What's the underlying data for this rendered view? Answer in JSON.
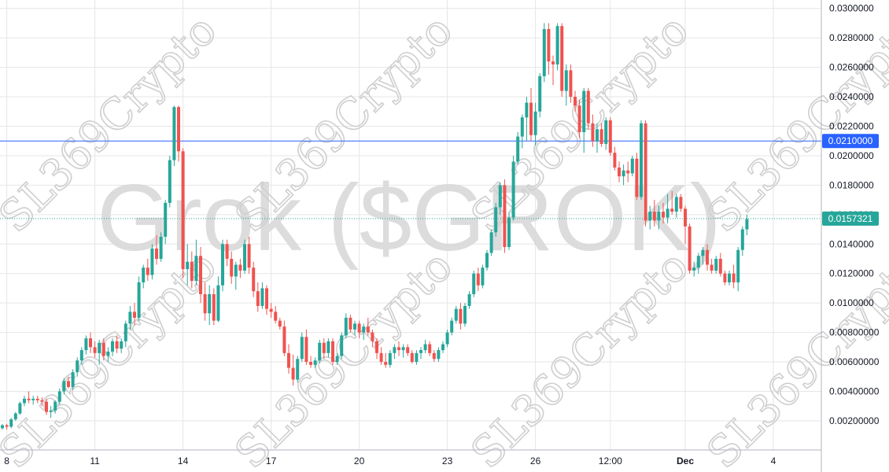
{
  "watermark": {
    "title": "Grok ($GROK)",
    "brand": "SL369Crypto"
  },
  "colors": {
    "up": "#26a69a",
    "down": "#ef5350",
    "grid": "#e6e6e6",
    "hline": "#2962ff",
    "last_line": "#26a69a"
  },
  "chart_data": {
    "type": "candlestick",
    "ylim": [
      0,
      0.0305
    ],
    "yticks": [
      "0.00200000",
      "0.00400000",
      "0.00600000",
      "0.00800000",
      "0.0100000",
      "0.0120000",
      "0.0140000",
      "0.0160000",
      "0.0180000",
      "0.0200000",
      "0.0220000",
      "0.0240000",
      "0.0260000",
      "0.0280000",
      "0.0300000"
    ],
    "xticks": [
      {
        "label": "8",
        "bar": 1,
        "bold": false
      },
      {
        "label": "11",
        "bar": 21,
        "bold": false
      },
      {
        "label": "14",
        "bar": 41,
        "bold": false
      },
      {
        "label": "17",
        "bar": 61,
        "bold": false
      },
      {
        "label": "20",
        "bar": 81,
        "bold": false
      },
      {
        "label": "23",
        "bar": 101,
        "bold": false
      },
      {
        "label": "26",
        "bar": 121,
        "bold": false
      },
      {
        "label": "12:00",
        "bar": 138,
        "bold": false
      },
      {
        "label": "Dec",
        "bar": 155,
        "bold": true
      },
      {
        "label": "4",
        "bar": 175,
        "bold": false
      }
    ],
    "horizontal_line": {
      "value": 0.021,
      "label": "0.0210000"
    },
    "last_price": {
      "value": 0.0157321,
      "label": "0.0157321"
    },
    "ohlc": [
      [
        0.0015,
        0.0018,
        0.0014,
        0.0017
      ],
      [
        0.0017,
        0.0018,
        0.0014,
        0.0016
      ],
      [
        0.0016,
        0.0022,
        0.0015,
        0.0021
      ],
      [
        0.0021,
        0.0026,
        0.002,
        0.0025
      ],
      [
        0.0025,
        0.0033,
        0.0024,
        0.0032
      ],
      [
        0.0032,
        0.0037,
        0.003,
        0.0035
      ],
      [
        0.0035,
        0.004,
        0.0032,
        0.0034
      ],
      [
        0.0034,
        0.0037,
        0.0031,
        0.0035
      ],
      [
        0.0035,
        0.0037,
        0.0032,
        0.0034
      ],
      [
        0.0034,
        0.0036,
        0.003,
        0.0033
      ],
      [
        0.0033,
        0.0035,
        0.0024,
        0.0026
      ],
      [
        0.0026,
        0.003,
        0.0022,
        0.0027
      ],
      [
        0.0027,
        0.0034,
        0.0025,
        0.0033
      ],
      [
        0.0033,
        0.0042,
        0.0031,
        0.004
      ],
      [
        0.004,
        0.0049,
        0.0038,
        0.0047
      ],
      [
        0.0047,
        0.005,
        0.0042,
        0.0043
      ],
      [
        0.0043,
        0.0055,
        0.0041,
        0.0053
      ],
      [
        0.0053,
        0.0063,
        0.005,
        0.0061
      ],
      [
        0.0061,
        0.007,
        0.0058,
        0.0068
      ],
      [
        0.0068,
        0.0078,
        0.0065,
        0.0076
      ],
      [
        0.0076,
        0.008,
        0.0066,
        0.007
      ],
      [
        0.007,
        0.0074,
        0.0063,
        0.0066
      ],
      [
        0.0066,
        0.0075,
        0.0058,
        0.0073
      ],
      [
        0.0073,
        0.0076,
        0.0061,
        0.0064
      ],
      [
        0.0064,
        0.007,
        0.006,
        0.0067
      ],
      [
        0.0067,
        0.0076,
        0.0064,
        0.0074
      ],
      [
        0.0074,
        0.0078,
        0.0066,
        0.0069
      ],
      [
        0.0069,
        0.0076,
        0.0066,
        0.0074
      ],
      [
        0.0074,
        0.0088,
        0.007,
        0.0086
      ],
      [
        0.0086,
        0.0098,
        0.0082,
        0.0094
      ],
      [
        0.0094,
        0.01,
        0.0085,
        0.009
      ],
      [
        0.009,
        0.0118,
        0.0088,
        0.0114
      ],
      [
        0.0114,
        0.0126,
        0.011,
        0.0124
      ],
      [
        0.0124,
        0.013,
        0.0115,
        0.0119
      ],
      [
        0.0119,
        0.014,
        0.0116,
        0.0137
      ],
      [
        0.0137,
        0.0146,
        0.0126,
        0.013
      ],
      [
        0.013,
        0.0148,
        0.0128,
        0.0145
      ],
      [
        0.0145,
        0.017,
        0.014,
        0.0168
      ],
      [
        0.0168,
        0.02,
        0.0165,
        0.0197
      ],
      [
        0.0197,
        0.0234,
        0.0193,
        0.0233
      ],
      [
        0.0233,
        0.0234,
        0.0196,
        0.0203
      ],
      [
        0.0203,
        0.0205,
        0.0117,
        0.0123
      ],
      [
        0.0123,
        0.014,
        0.0112,
        0.0128
      ],
      [
        0.0128,
        0.0135,
        0.011,
        0.0115
      ],
      [
        0.0115,
        0.0143,
        0.0112,
        0.0132
      ],
      [
        0.0132,
        0.0138,
        0.01,
        0.0106
      ],
      [
        0.0106,
        0.0114,
        0.0088,
        0.0093
      ],
      [
        0.0093,
        0.0112,
        0.0085,
        0.0106
      ],
      [
        0.0106,
        0.011,
        0.0085,
        0.0088
      ],
      [
        0.0088,
        0.0118,
        0.0087,
        0.0112
      ],
      [
        0.0112,
        0.0143,
        0.0108,
        0.014
      ],
      [
        0.014,
        0.0143,
        0.0125,
        0.013
      ],
      [
        0.013,
        0.0135,
        0.0113,
        0.0118
      ],
      [
        0.0118,
        0.0128,
        0.0109,
        0.0126
      ],
      [
        0.0126,
        0.013,
        0.0117,
        0.0122
      ],
      [
        0.0122,
        0.0143,
        0.012,
        0.014
      ],
      [
        0.014,
        0.0145,
        0.012,
        0.0124
      ],
      [
        0.0124,
        0.0128,
        0.0104,
        0.0108
      ],
      [
        0.0108,
        0.0114,
        0.0094,
        0.0098
      ],
      [
        0.0098,
        0.0114,
        0.0096,
        0.011
      ],
      [
        0.011,
        0.0112,
        0.0092,
        0.0096
      ],
      [
        0.0096,
        0.01,
        0.009,
        0.0094
      ],
      [
        0.0094,
        0.0098,
        0.0086,
        0.0088
      ],
      [
        0.0088,
        0.009,
        0.0082,
        0.0084
      ],
      [
        0.0084,
        0.0088,
        0.0064,
        0.0066
      ],
      [
        0.0066,
        0.0072,
        0.0052,
        0.0056
      ],
      [
        0.0056,
        0.0065,
        0.0044,
        0.0048
      ],
      [
        0.0048,
        0.0064,
        0.0046,
        0.0062
      ],
      [
        0.0062,
        0.008,
        0.006,
        0.0077
      ],
      [
        0.0077,
        0.0082,
        0.0058,
        0.006
      ],
      [
        0.006,
        0.0064,
        0.0056,
        0.0058
      ],
      [
        0.0058,
        0.0063,
        0.0056,
        0.0061
      ],
      [
        0.0061,
        0.0075,
        0.0059,
        0.0073
      ],
      [
        0.0073,
        0.0076,
        0.0062,
        0.0066
      ],
      [
        0.0066,
        0.0076,
        0.0063,
        0.0074
      ],
      [
        0.0074,
        0.0076,
        0.0058,
        0.006
      ],
      [
        0.006,
        0.0066,
        0.0058,
        0.0064
      ],
      [
        0.0064,
        0.008,
        0.0062,
        0.0078
      ],
      [
        0.0078,
        0.0093,
        0.0076,
        0.009
      ],
      [
        0.009,
        0.0092,
        0.008,
        0.0082
      ],
      [
        0.0082,
        0.0088,
        0.0078,
        0.0086
      ],
      [
        0.0086,
        0.0088,
        0.0076,
        0.008
      ],
      [
        0.008,
        0.0086,
        0.0075,
        0.0084
      ],
      [
        0.0084,
        0.009,
        0.0078,
        0.008
      ],
      [
        0.008,
        0.0082,
        0.007,
        0.0074
      ],
      [
        0.0074,
        0.0076,
        0.0062,
        0.0066
      ],
      [
        0.0066,
        0.007,
        0.0058,
        0.006
      ],
      [
        0.006,
        0.0066,
        0.0056,
        0.0058
      ],
      [
        0.0058,
        0.0068,
        0.0056,
        0.0066
      ],
      [
        0.0066,
        0.0072,
        0.0062,
        0.007
      ],
      [
        0.007,
        0.0074,
        0.0064,
        0.0068
      ],
      [
        0.0068,
        0.0072,
        0.0063,
        0.007
      ],
      [
        0.007,
        0.0072,
        0.0064,
        0.0066
      ],
      [
        0.0066,
        0.0068,
        0.0059,
        0.006
      ],
      [
        0.006,
        0.0068,
        0.0058,
        0.0066
      ],
      [
        0.0066,
        0.007,
        0.0062,
        0.0068
      ],
      [
        0.0068,
        0.0075,
        0.0066,
        0.0072
      ],
      [
        0.0072,
        0.0074,
        0.0064,
        0.0066
      ],
      [
        0.0066,
        0.0068,
        0.006,
        0.0062
      ],
      [
        0.0062,
        0.007,
        0.006,
        0.0068
      ],
      [
        0.0068,
        0.0074,
        0.0066,
        0.0072
      ],
      [
        0.0072,
        0.0082,
        0.007,
        0.008
      ],
      [
        0.008,
        0.009,
        0.0078,
        0.0088
      ],
      [
        0.0088,
        0.0098,
        0.0086,
        0.0096
      ],
      [
        0.0096,
        0.01,
        0.0082,
        0.0086
      ],
      [
        0.0086,
        0.01,
        0.0084,
        0.0098
      ],
      [
        0.0098,
        0.0108,
        0.0096,
        0.0106
      ],
      [
        0.0106,
        0.0122,
        0.0104,
        0.012
      ],
      [
        0.012,
        0.0124,
        0.0108,
        0.0112
      ],
      [
        0.0112,
        0.0126,
        0.011,
        0.0124
      ],
      [
        0.0124,
        0.0136,
        0.0122,
        0.0134
      ],
      [
        0.0134,
        0.015,
        0.0132,
        0.0148
      ],
      [
        0.0148,
        0.0168,
        0.0145,
        0.0165
      ],
      [
        0.0165,
        0.0182,
        0.016,
        0.018
      ],
      [
        0.018,
        0.0184,
        0.0134,
        0.0138
      ],
      [
        0.0138,
        0.0162,
        0.0136,
        0.0158
      ],
      [
        0.0158,
        0.02,
        0.0156,
        0.0196
      ],
      [
        0.0196,
        0.0216,
        0.0194,
        0.0213
      ],
      [
        0.0213,
        0.0228,
        0.0205,
        0.0226
      ],
      [
        0.0226,
        0.024,
        0.021,
        0.0236
      ],
      [
        0.0236,
        0.0246,
        0.021,
        0.0214
      ],
      [
        0.0214,
        0.0236,
        0.0207,
        0.023
      ],
      [
        0.023,
        0.0256,
        0.0226,
        0.0254
      ],
      [
        0.0254,
        0.029,
        0.025,
        0.0286
      ],
      [
        0.0286,
        0.029,
        0.0255,
        0.0264
      ],
      [
        0.0264,
        0.0268,
        0.0248,
        0.0262
      ],
      [
        0.0262,
        0.029,
        0.0258,
        0.0288
      ],
      [
        0.0288,
        0.029,
        0.024,
        0.0244
      ],
      [
        0.0244,
        0.0262,
        0.0234,
        0.0258
      ],
      [
        0.0258,
        0.0262,
        0.0236,
        0.024
      ],
      [
        0.024,
        0.0244,
        0.023,
        0.0234
      ],
      [
        0.0234,
        0.0238,
        0.0212,
        0.0216
      ],
      [
        0.0216,
        0.0246,
        0.0202,
        0.0244
      ],
      [
        0.0244,
        0.0246,
        0.0218,
        0.0222
      ],
      [
        0.0222,
        0.0228,
        0.0206,
        0.021
      ],
      [
        0.021,
        0.0222,
        0.0202,
        0.0218
      ],
      [
        0.0218,
        0.0222,
        0.0206,
        0.0208
      ],
      [
        0.0208,
        0.0226,
        0.0204,
        0.0224
      ],
      [
        0.0224,
        0.0226,
        0.02,
        0.0202
      ],
      [
        0.0202,
        0.0206,
        0.019,
        0.0192
      ],
      [
        0.0192,
        0.0196,
        0.0182,
        0.0186
      ],
      [
        0.0186,
        0.0194,
        0.018,
        0.019
      ],
      [
        0.019,
        0.0196,
        0.0182,
        0.0188
      ],
      [
        0.0188,
        0.02,
        0.0186,
        0.0198
      ],
      [
        0.0198,
        0.0202,
        0.017,
        0.0172
      ],
      [
        0.0172,
        0.0224,
        0.017,
        0.0222
      ],
      [
        0.0222,
        0.0224,
        0.0152,
        0.0156
      ],
      [
        0.0156,
        0.0166,
        0.015,
        0.0162
      ],
      [
        0.0162,
        0.017,
        0.0152,
        0.0156
      ],
      [
        0.0156,
        0.0166,
        0.015,
        0.0162
      ],
      [
        0.0162,
        0.0168,
        0.0154,
        0.0158
      ],
      [
        0.0158,
        0.0174,
        0.0154,
        0.0164
      ],
      [
        0.0164,
        0.0176,
        0.016,
        0.0162
      ],
      [
        0.0162,
        0.0174,
        0.0158,
        0.0172
      ],
      [
        0.0172,
        0.0174,
        0.0162,
        0.0164
      ],
      [
        0.0164,
        0.0166,
        0.014,
        0.0152
      ],
      [
        0.0152,
        0.0154,
        0.012,
        0.0122
      ],
      [
        0.0122,
        0.0128,
        0.0118,
        0.0124
      ],
      [
        0.0124,
        0.0134,
        0.012,
        0.0132
      ],
      [
        0.0132,
        0.0138,
        0.0126,
        0.0136
      ],
      [
        0.0136,
        0.014,
        0.0122,
        0.0126
      ],
      [
        0.0126,
        0.013,
        0.012,
        0.0122
      ],
      [
        0.0122,
        0.0132,
        0.012,
        0.013
      ],
      [
        0.013,
        0.0134,
        0.0118,
        0.012
      ],
      [
        0.012,
        0.0122,
        0.0112,
        0.0114
      ],
      [
        0.0114,
        0.0122,
        0.0112,
        0.012
      ],
      [
        0.012,
        0.0126,
        0.011,
        0.0114
      ],
      [
        0.0114,
        0.0138,
        0.0108,
        0.0136
      ],
      [
        0.0136,
        0.0152,
        0.0132,
        0.015
      ],
      [
        0.015,
        0.016,
        0.0146,
        0.0157
      ]
    ]
  }
}
